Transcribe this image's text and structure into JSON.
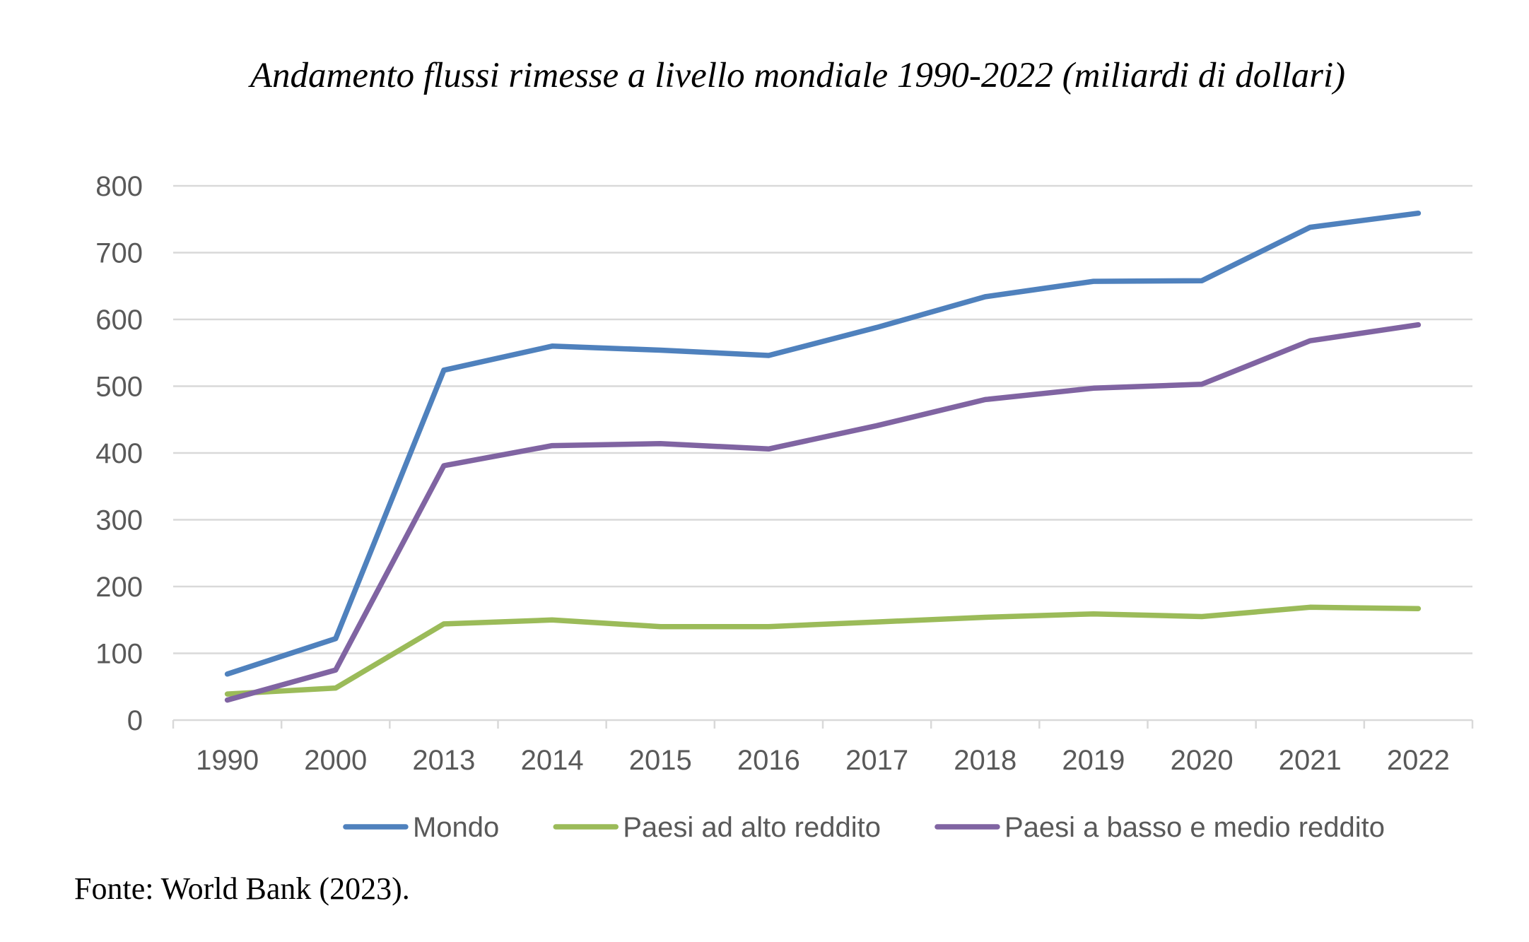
{
  "chart_data": {
    "type": "line",
    "title": "Andamento flussi rimesse a livello mondiale 1990-2022 (miliardi di dollari)",
    "xlabel": "",
    "ylabel": "",
    "categories": [
      "1990",
      "2000",
      "2013",
      "2014",
      "2015",
      "2016",
      "2017",
      "2018",
      "2019",
      "2020",
      "2021",
      "2022"
    ],
    "ylim": [
      0,
      800
    ],
    "yticks": [
      0,
      100,
      200,
      300,
      400,
      500,
      600,
      700,
      800
    ],
    "grid": true,
    "legend_position": "bottom",
    "series": [
      {
        "name": "Mondo",
        "color": "#4f81bd",
        "values": [
          69,
          122,
          524,
          560,
          554,
          546,
          588,
          634,
          657,
          658,
          738,
          759
        ]
      },
      {
        "name": "Paesi ad alto reddito",
        "color": "#9bbb59",
        "values": [
          39,
          48,
          144,
          150,
          140,
          140,
          147,
          154,
          159,
          155,
          169,
          167
        ]
      },
      {
        "name": "Paesi a basso e medio reddito",
        "color": "#8064a2",
        "values": [
          30,
          75,
          381,
          411,
          414,
          406,
          441,
          480,
          497,
          503,
          568,
          592
        ]
      }
    ]
  },
  "source": "Fonte: World Bank (2023)."
}
